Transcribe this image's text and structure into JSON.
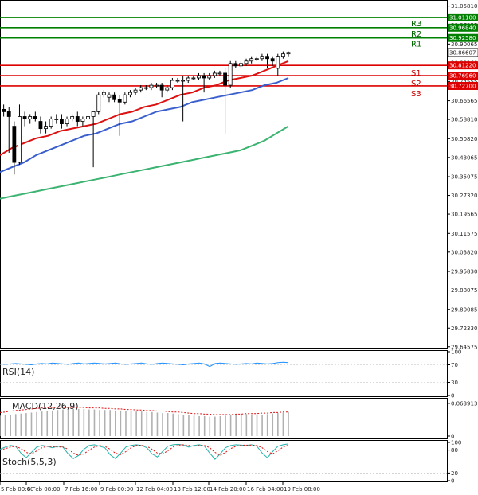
{
  "chart_data": {
    "type": "candlestick",
    "instrument_note": "",
    "main": {
      "ylim": [
        29.645,
        31.07
      ],
      "y_ticks": [
        "31.05810",
        "30.97955",
        "30.90065",
        "30.82260",
        "30.74555",
        "30.66565",
        "30.58810",
        "30.50820",
        "30.43065",
        "30.35075",
        "30.27320",
        "30.19565",
        "30.11575",
        "30.03820",
        "29.95830",
        "29.88075",
        "29.80085",
        "29.72330",
        "29.64575"
      ],
      "last_price": {
        "value": 30.86607,
        "label": "30.86607"
      },
      "levels": [
        {
          "name": "R3",
          "value": 31.011,
          "label": "31.01100",
          "color": "#008000"
        },
        {
          "name": "R2",
          "value": 30.9684,
          "label": "30.96840",
          "color": "#008000"
        },
        {
          "name": "R1",
          "value": 30.9258,
          "label": "30.92580",
          "color": "#008000"
        },
        {
          "name": "S1",
          "value": 30.8122,
          "label": "30.81220",
          "color": "#dd0000"
        },
        {
          "name": "S2",
          "value": 30.7696,
          "label": "30.76960",
          "color": "#dd0000"
        },
        {
          "name": "S3",
          "value": 30.727,
          "label": "30.72700",
          "color": "#dd0000"
        }
      ],
      "candles": [
        [
          30.61,
          30.66,
          30.58,
          30.63
        ],
        [
          30.63,
          30.65,
          30.6,
          30.62
        ],
        [
          30.62,
          30.64,
          30.45,
          30.6
        ],
        [
          30.56,
          30.58,
          30.36,
          30.41
        ],
        [
          30.41,
          30.65,
          30.4,
          30.6
        ],
        [
          30.6,
          30.62,
          30.56,
          30.59
        ],
        [
          30.59,
          30.61,
          30.57,
          30.6
        ],
        [
          30.6,
          30.62,
          30.58,
          30.59
        ],
        [
          30.58,
          30.6,
          30.53,
          30.55
        ],
        [
          30.55,
          30.58,
          30.53,
          30.56
        ],
        [
          30.56,
          30.6,
          30.55,
          30.59
        ],
        [
          30.59,
          30.61,
          30.57,
          30.59
        ],
        [
          30.59,
          30.61,
          30.55,
          30.57
        ],
        [
          30.57,
          30.6,
          30.56,
          30.59
        ],
        [
          30.59,
          30.61,
          30.58,
          30.6
        ],
        [
          30.6,
          30.62,
          30.56,
          30.58
        ],
        [
          30.58,
          30.6,
          30.56,
          30.59
        ],
        [
          30.59,
          30.61,
          30.57,
          30.6
        ],
        [
          30.6,
          30.62,
          30.39,
          30.62
        ],
        [
          30.62,
          30.7,
          30.61,
          30.69
        ],
        [
          30.69,
          30.71,
          30.68,
          30.7
        ],
        [
          30.68,
          30.7,
          30.66,
          30.69
        ],
        [
          30.69,
          30.7,
          30.66,
          30.67
        ],
        [
          30.67,
          30.69,
          30.52,
          30.66
        ],
        [
          30.66,
          30.7,
          30.65,
          30.69
        ],
        [
          30.69,
          30.71,
          30.68,
          30.7
        ],
        [
          30.7,
          30.72,
          30.69,
          30.71
        ],
        [
          30.71,
          30.73,
          30.7,
          30.72
        ],
        [
          30.72,
          30.73,
          30.71,
          30.72
        ],
        [
          30.72,
          30.74,
          30.71,
          30.73
        ],
        [
          30.73,
          30.74,
          30.72,
          30.73
        ],
        [
          30.73,
          30.74,
          30.68,
          30.71
        ],
        [
          30.71,
          30.73,
          30.7,
          30.72
        ],
        [
          30.72,
          30.76,
          30.71,
          30.75
        ],
        [
          30.75,
          30.76,
          30.74,
          30.75
        ],
        [
          30.75,
          30.77,
          30.58,
          30.75
        ],
        [
          30.75,
          30.77,
          30.74,
          30.76
        ],
        [
          30.76,
          30.77,
          30.75,
          30.76
        ],
        [
          30.76,
          30.78,
          30.75,
          30.77
        ],
        [
          30.77,
          30.78,
          30.7,
          30.76
        ],
        [
          30.76,
          30.78,
          30.75,
          30.77
        ],
        [
          30.77,
          30.79,
          30.76,
          30.78
        ],
        [
          30.78,
          30.79,
          30.77,
          30.78
        ],
        [
          30.78,
          30.8,
          30.53,
          30.73
        ],
        [
          30.73,
          30.83,
          30.72,
          30.82
        ],
        [
          30.82,
          30.83,
          30.8,
          30.81
        ],
        [
          30.81,
          30.83,
          30.8,
          30.82
        ],
        [
          30.82,
          30.84,
          30.81,
          30.83
        ],
        [
          30.83,
          30.85,
          30.82,
          30.84
        ],
        [
          30.84,
          30.85,
          30.83,
          30.84
        ],
        [
          30.84,
          30.86,
          30.83,
          30.85
        ],
        [
          30.85,
          30.86,
          30.8,
          30.84
        ],
        [
          30.84,
          30.85,
          30.81,
          30.83
        ],
        [
          30.8,
          30.86,
          30.77,
          30.85
        ],
        [
          30.85,
          30.87,
          30.84,
          30.86
        ],
        [
          30.86,
          30.87,
          30.85,
          30.866
        ]
      ],
      "ma_red": [
        30.44,
        30.47,
        30.49,
        30.51,
        30.52,
        30.54,
        30.55,
        30.56,
        30.57,
        30.59,
        30.61,
        30.62,
        30.64,
        30.65,
        30.67,
        30.69,
        30.7,
        30.72,
        30.73,
        30.75,
        30.76,
        30.77,
        30.79,
        30.81,
        30.83
      ],
      "ma_blue": [
        30.37,
        30.39,
        30.41,
        30.44,
        30.46,
        30.48,
        30.5,
        30.52,
        30.53,
        30.55,
        30.57,
        30.58,
        30.6,
        30.62,
        30.63,
        30.64,
        30.66,
        30.67,
        30.68,
        30.69,
        30.7,
        30.71,
        30.73,
        30.74,
        30.76
      ],
      "ma_green": [
        30.26,
        30.27,
        30.28,
        30.29,
        30.3,
        30.31,
        30.32,
        30.33,
        30.34,
        30.35,
        30.36,
        30.37,
        30.38,
        30.39,
        30.4,
        30.41,
        30.42,
        30.43,
        30.44,
        30.45,
        30.46,
        30.48,
        30.5,
        30.53,
        30.56
      ]
    },
    "rsi": {
      "title": "RSI(14)",
      "ylim": [
        0,
        100
      ],
      "ticks": [
        "100",
        "70",
        "30",
        "0"
      ],
      "values": [
        72,
        71,
        72,
        73,
        72,
        71,
        70,
        72,
        73,
        72,
        74,
        73,
        72,
        71,
        73,
        74,
        72,
        73,
        74,
        73,
        72,
        73,
        74,
        72,
        71,
        72,
        73,
        74,
        72,
        71,
        73,
        74,
        73,
        72,
        71,
        70,
        72,
        73,
        74,
        72,
        66,
        73,
        74,
        73,
        72,
        71,
        72,
        73,
        72,
        74,
        73,
        72,
        73,
        75,
        76,
        75
      ]
    },
    "macd": {
      "title": "MACD(12,26,9)",
      "ylim": [
        0,
        0.07
      ],
      "ticks": [
        "0.063913",
        "0"
      ],
      "histogram": [
        0.04,
        0.041,
        0.042,
        0.043,
        0.044,
        0.045,
        0.046,
        0.047,
        0.048,
        0.049,
        0.05,
        0.051,
        0.052,
        0.052,
        0.053,
        0.053,
        0.053,
        0.052,
        0.052,
        0.051,
        0.051,
        0.051,
        0.05,
        0.05,
        0.049,
        0.049,
        0.048,
        0.048,
        0.047,
        0.047,
        0.046,
        0.045,
        0.045,
        0.044,
        0.043,
        0.042,
        0.041,
        0.04,
        0.039,
        0.039,
        0.038,
        0.038,
        0.039,
        0.04,
        0.041,
        0.042,
        0.043,
        0.043,
        0.042,
        0.041,
        0.042,
        0.043,
        0.044,
        0.045,
        0.046,
        0.047
      ],
      "signal": [
        0.046,
        0.047,
        0.049,
        0.05,
        0.051,
        0.052,
        0.053,
        0.054,
        0.055,
        0.055,
        0.056,
        0.056,
        0.056,
        0.056,
        0.056,
        0.056,
        0.056,
        0.055,
        0.055,
        0.055,
        0.054,
        0.054,
        0.053,
        0.053,
        0.052,
        0.052,
        0.051,
        0.051,
        0.05,
        0.05,
        0.049,
        0.049,
        0.048,
        0.047,
        0.047,
        0.046,
        0.045,
        0.044,
        0.044,
        0.043,
        0.043,
        0.042,
        0.042,
        0.042,
        0.042,
        0.043,
        0.043,
        0.044,
        0.044,
        0.044,
        0.045,
        0.045,
        0.046,
        0.046,
        0.047,
        0.047
      ]
    },
    "stoch": {
      "title": "Stoch(5,5,3)",
      "ylim": [
        0,
        100
      ],
      "ticks": [
        "100",
        "80",
        "20",
        "0"
      ],
      "k": [
        82,
        88,
        92,
        90,
        72,
        60,
        74,
        88,
        92,
        90,
        86,
        90,
        88,
        70,
        58,
        66,
        82,
        92,
        94,
        90,
        86,
        68,
        58,
        72,
        88,
        92,
        94,
        92,
        86,
        70,
        62,
        76,
        90,
        94,
        95,
        93,
        88,
        92,
        94,
        90,
        72,
        56,
        70,
        86,
        92,
        94,
        93,
        92,
        94,
        90,
        72,
        60,
        76,
        90,
        94,
        96
      ],
      "d": [
        80,
        84,
        88,
        90,
        84,
        74,
        70,
        78,
        86,
        90,
        89,
        88,
        88,
        82,
        72,
        66,
        70,
        80,
        88,
        92,
        90,
        82,
        72,
        68,
        76,
        86,
        92,
        93,
        90,
        82,
        72,
        70,
        78,
        88,
        93,
        94,
        92,
        90,
        92,
        92,
        86,
        74,
        66,
        74,
        84,
        90,
        93,
        93,
        93,
        92,
        86,
        76,
        70,
        78,
        88,
        93
      ]
    },
    "x_labels": [
      "5 Feb 00:00",
      "6 Feb 08:00",
      "7 Feb 16:00",
      "9 Feb 00:00",
      "12 Feb 04:00",
      "13 Feb 12:00",
      "14 Feb 20:00",
      "16 Feb 04:00",
      "19 Feb 08:00"
    ]
  }
}
